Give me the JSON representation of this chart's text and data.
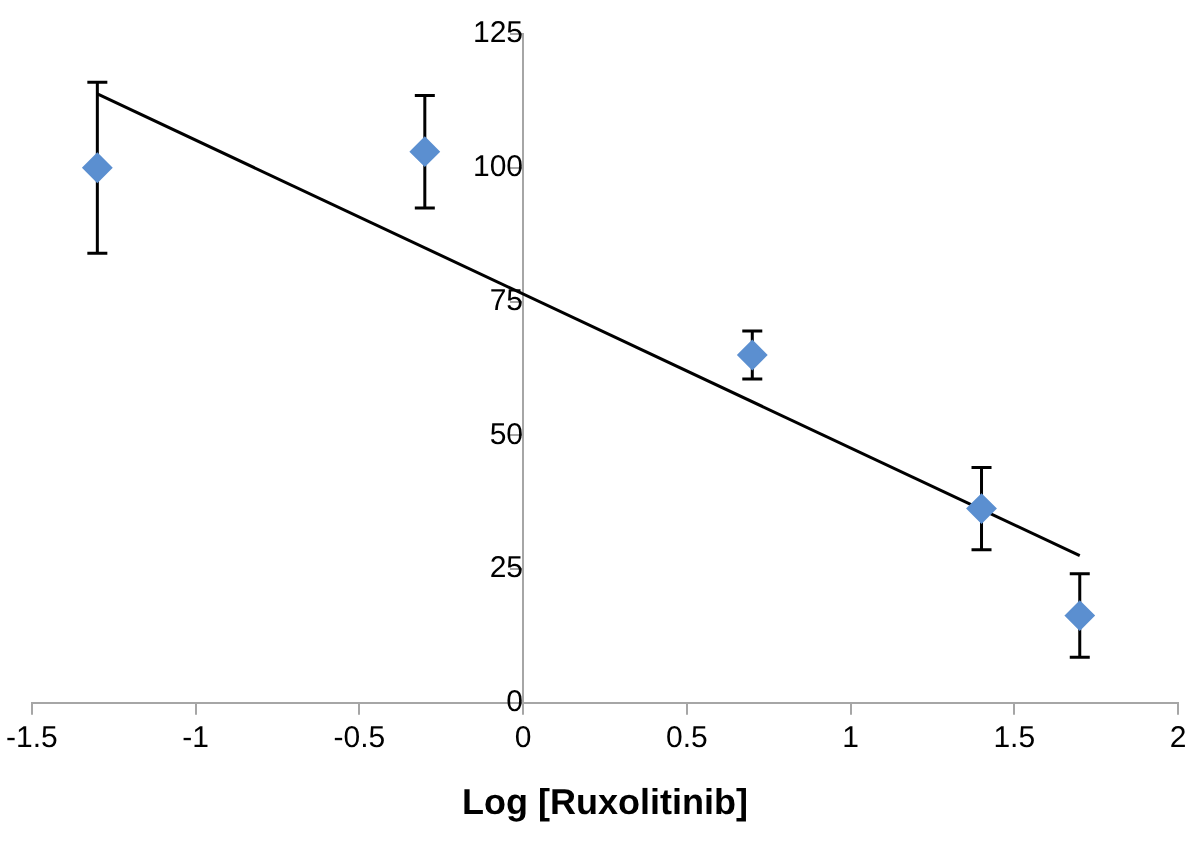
{
  "chart_data": {
    "type": "scatter",
    "xlabel": "Log [Ruxolitinib]",
    "series": [
      {
        "color": "#5b8fd0",
        "x": [
          -1.3,
          -0.3,
          0.7,
          1.4,
          1.7
        ],
        "values": [
          100,
          103,
          65,
          36.3,
          16.3
        ],
        "errors": [
          16,
          10.5,
          4.5,
          7.7,
          7.8
        ],
        "marker": "diamond"
      },
      {
        "type": "line",
        "color": "#000000",
        "x": [
          -1.3,
          1.7
        ],
        "values": [
          113.8,
          27.5
        ],
        "marker": "none",
        "line_style": "solid"
      }
    ],
    "xlim": [
      -1.5,
      2
    ],
    "xticks": [
      -1.5,
      -1,
      -0.5,
      0,
      0.5,
      1,
      1.5,
      2
    ],
    "ylim": [
      0,
      125
    ],
    "yticks": [
      0,
      25,
      50,
      75,
      100,
      125
    ],
    "grid": false,
    "legend": false
  }
}
